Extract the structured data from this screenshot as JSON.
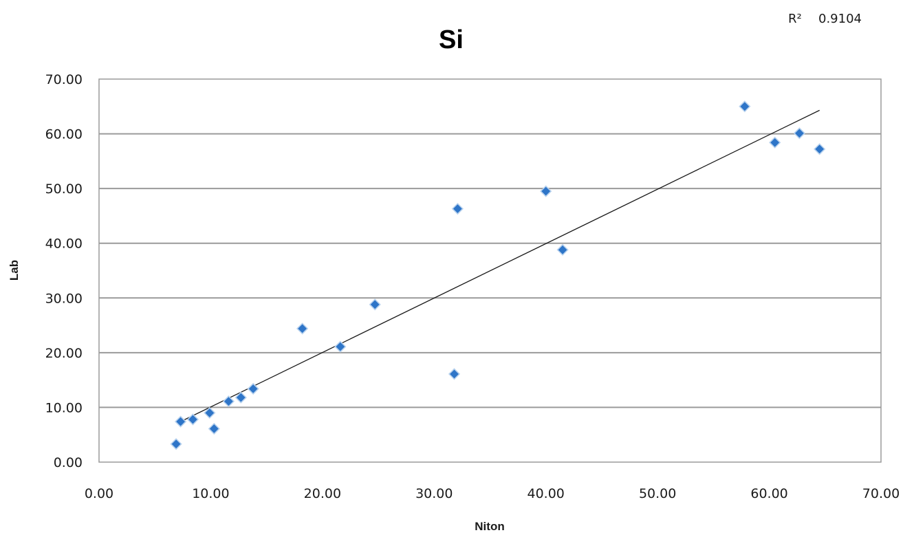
{
  "chart_data": {
    "type": "scatter",
    "title": "Si",
    "xlabel": "Niton",
    "ylabel": "Lab",
    "xlim": [
      0,
      70
    ],
    "ylim": [
      0,
      70
    ],
    "x_ticks": [
      "0.00",
      "10.00",
      "20.00",
      "30.00",
      "40.00",
      "50.00",
      "60.00",
      "70.00"
    ],
    "y_ticks": [
      "0.00",
      "10.00",
      "20.00",
      "30.00",
      "40.00",
      "50.00",
      "60.00",
      "70.00"
    ],
    "grid": "horizontal",
    "legend": "none",
    "series": [
      {
        "marker": "diamond",
        "color": "#2e75c8",
        "points": [
          [
            6.9,
            3.3
          ],
          [
            7.3,
            7.4
          ],
          [
            8.4,
            7.8
          ],
          [
            9.9,
            9.0
          ],
          [
            10.3,
            6.1
          ],
          [
            11.6,
            11.1
          ],
          [
            12.7,
            11.8
          ],
          [
            13.8,
            13.4
          ],
          [
            18.2,
            24.4
          ],
          [
            21.6,
            21.1
          ],
          [
            24.7,
            28.8
          ],
          [
            31.8,
            16.1
          ],
          [
            32.1,
            46.3
          ],
          [
            40.0,
            49.5
          ],
          [
            41.5,
            38.8
          ],
          [
            57.8,
            65.0
          ],
          [
            60.5,
            58.4
          ],
          [
            62.7,
            60.1
          ],
          [
            64.5,
            57.2
          ]
        ]
      }
    ],
    "trendline": {
      "type": "linear",
      "x_range": [
        7.0,
        64.5
      ],
      "y_range": [
        7.1,
        64.3
      ],
      "color": "#1a1a1a",
      "r2_label": "R²",
      "r2_value": "0.9104"
    }
  }
}
